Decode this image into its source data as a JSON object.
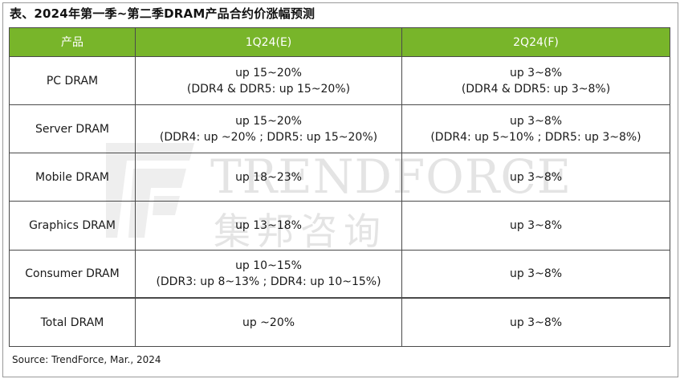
{
  "title": "表、2024年第一季~第二季DRAM产品合约价涨幅预测",
  "table": {
    "headers": [
      "产品",
      "1Q24(E)",
      "2Q24(F)"
    ],
    "rows": [
      {
        "product": "PC DRAM",
        "q1": [
          "up 15~20%",
          "(DDR4 & DDR5: up 15~20%)"
        ],
        "q2": [
          "up 3~8%",
          "(DDR4 & DDR5: up 3~8%)"
        ]
      },
      {
        "product": "Server DRAM",
        "q1": [
          "up 15~20%",
          "(DDR4: up ~20% ; DDR5: up 15~20%)"
        ],
        "q2": [
          "up 3~8%",
          "(DDR4: up 5~10% ; DDR5: up 3~8%)"
        ]
      },
      {
        "product": "Mobile DRAM",
        "q1": [
          "up 18~23%"
        ],
        "q2": [
          "up 3~8%"
        ]
      },
      {
        "product": "Graphics DRAM",
        "q1": [
          "up 13~18%"
        ],
        "q2": [
          "up 3~8%"
        ]
      },
      {
        "product": "Consumer DRAM",
        "q1": [
          "up 10~15%",
          "(DDR3: up 8~13% ; DDR4: up 10~15%)"
        ],
        "q2": [
          "up 3~8%"
        ]
      },
      {
        "product": "Total DRAM",
        "q1": [
          "up ~20%"
        ],
        "q2": [
          "up 3~8%"
        ]
      }
    ]
  },
  "source": "Source: TrendForce, Mar., 2024",
  "watermark": {
    "en": "TRENDFORCE",
    "cn": "集邦咨询"
  },
  "colors": {
    "header_bg": "#78b52a",
    "header_text": "#ffffff",
    "border": "#4a4a4a"
  }
}
